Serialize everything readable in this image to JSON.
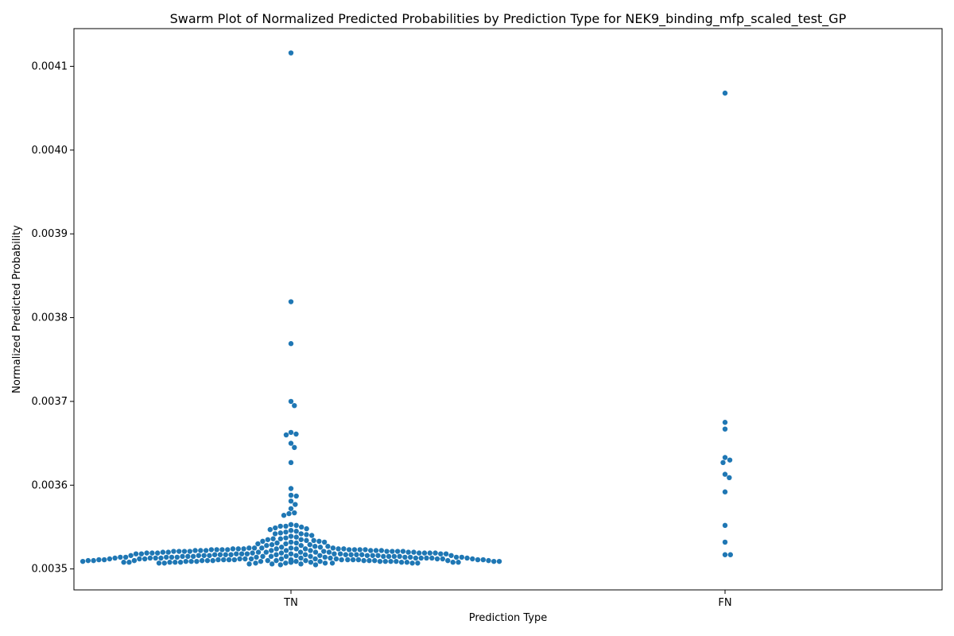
{
  "chart_data": {
    "type": "scatter",
    "subtype": "swarm",
    "title": "Swarm Plot of Normalized Predicted Probabilities by Prediction Type for NEK9_binding_mfp_scaled_test_GP",
    "xlabel": "Prediction Type",
    "ylabel": "Normalized Predicted Probability",
    "categories": [
      "TN",
      "FN"
    ],
    "ylim": [
      0.003475,
      0.004145
    ],
    "yticks": [
      0.0035,
      0.0036,
      0.0037,
      0.0038,
      0.0039,
      0.004,
      0.0041
    ],
    "ytick_labels": [
      "0.0035",
      "0.0036",
      "0.0037",
      "0.0038",
      "0.0039",
      "0.0040",
      "0.0041"
    ],
    "grid": false,
    "color": "#1f77b4",
    "series": [
      {
        "category": "TN",
        "values": [
          0.004116,
          0.003819,
          0.003769,
          0.0037,
          0.003695,
          0.003663,
          0.003661,
          0.00366,
          0.00365,
          0.003645,
          0.003627,
          0.003596,
          0.003588,
          0.003587,
          0.003581,
          0.003577,
          0.003572,
          0.003567,
          0.003566,
          0.003564,
          0.003553,
          0.003552,
          0.003551,
          0.003551,
          0.00355,
          0.003549,
          0.003548,
          0.003547,
          0.003546,
          0.003545,
          0.003544,
          0.003543,
          0.003542,
          0.003542,
          0.003541,
          0.00354,
          0.003539,
          0.003538,
          0.003537,
          0.003536,
          0.003536,
          0.003535,
          0.003535,
          0.003534,
          0.003534,
          0.003533,
          0.003533,
          0.003532,
          0.003532,
          0.003531,
          0.003531,
          0.00353,
          0.00353,
          0.003529,
          0.003529,
          0.003528,
          0.003528,
          0.003527,
          0.003527,
          0.003526,
          0.003526,
          0.003525,
          0.003525,
          0.003525,
          0.003524,
          0.003524,
          0.003524,
          0.003524,
          0.003523,
          0.003523,
          0.003523,
          0.003523,
          0.003522,
          0.003522,
          0.003522,
          0.003522,
          0.003522,
          0.003521,
          0.003521,
          0.003521,
          0.003521,
          0.003521,
          0.00352,
          0.00352,
          0.00352,
          0.00352,
          0.00352,
          0.003519,
          0.003519,
          0.003519,
          0.003519,
          0.003519,
          0.003518,
          0.003518,
          0.003518,
          0.003518,
          0.003518,
          0.003518,
          0.003517,
          0.003517,
          0.003517,
          0.003517,
          0.003517,
          0.003517,
          0.003516,
          0.003516,
          0.003516,
          0.003516,
          0.003516,
          0.003516,
          0.003515,
          0.003515,
          0.003515,
          0.003515,
          0.003515,
          0.003515,
          0.003515,
          0.003514,
          0.003514,
          0.003514,
          0.003514,
          0.003514,
          0.003514,
          0.003514,
          0.003513,
          0.003513,
          0.003513,
          0.003513,
          0.003513,
          0.003513,
          0.003513,
          0.003512,
          0.003512,
          0.003512,
          0.003512,
          0.003512,
          0.003512,
          0.003512,
          0.003512,
          0.003511,
          0.003511,
          0.003511,
          0.003511,
          0.003511,
          0.003511,
          0.003511,
          0.003511,
          0.003511,
          0.00351,
          0.00351,
          0.00351,
          0.00351,
          0.00351,
          0.00351,
          0.00351,
          0.00351,
          0.00351,
          0.00351,
          0.00351,
          0.00351,
          0.003509,
          0.003509,
          0.003509,
          0.003509,
          0.003509,
          0.003509,
          0.003509,
          0.003509,
          0.003509,
          0.003509,
          0.003509,
          0.003509,
          0.003509,
          0.003509,
          0.003509,
          0.003508,
          0.003508,
          0.003508,
          0.003508,
          0.003508,
          0.003508,
          0.003508,
          0.003508,
          0.003508,
          0.003508,
          0.003508,
          0.003508,
          0.003507,
          0.003507,
          0.003507,
          0.003507,
          0.003507,
          0.003507,
          0.003507,
          0.003507,
          0.003506,
          0.003506,
          0.003506,
          0.003505,
          0.003505,
          0.003511,
          0.003512,
          0.003513,
          0.003514,
          0.003515,
          0.003516,
          0.003517,
          0.003518,
          0.003519,
          0.00352,
          0.003521,
          0.003522,
          0.003523,
          0.003524,
          0.003525,
          0.003511,
          0.003512,
          0.003513,
          0.003514,
          0.003515,
          0.003516,
          0.003517,
          0.003518,
          0.003519,
          0.00352,
          0.003521,
          0.003522,
          0.003523,
          0.003524,
          0.003525,
          0.00351,
          0.003511,
          0.003512,
          0.003513,
          0.003514,
          0.003515,
          0.003516,
          0.003517,
          0.003518,
          0.003519,
          0.00352,
          0.003521,
          0.003522,
          0.003523,
          0.003524,
          0.00351,
          0.003511,
          0.003512,
          0.003513,
          0.003514,
          0.003515,
          0.003516,
          0.003517,
          0.003518,
          0.003519,
          0.00352,
          0.003521,
          0.003522,
          0.003523,
          0.003524
        ]
      },
      {
        "category": "FN",
        "values": [
          0.004068,
          0.003675,
          0.003667,
          0.003633,
          0.00363,
          0.003627,
          0.003613,
          0.003609,
          0.003592,
          0.003552,
          0.003532,
          0.003517,
          0.003517
        ]
      }
    ]
  }
}
